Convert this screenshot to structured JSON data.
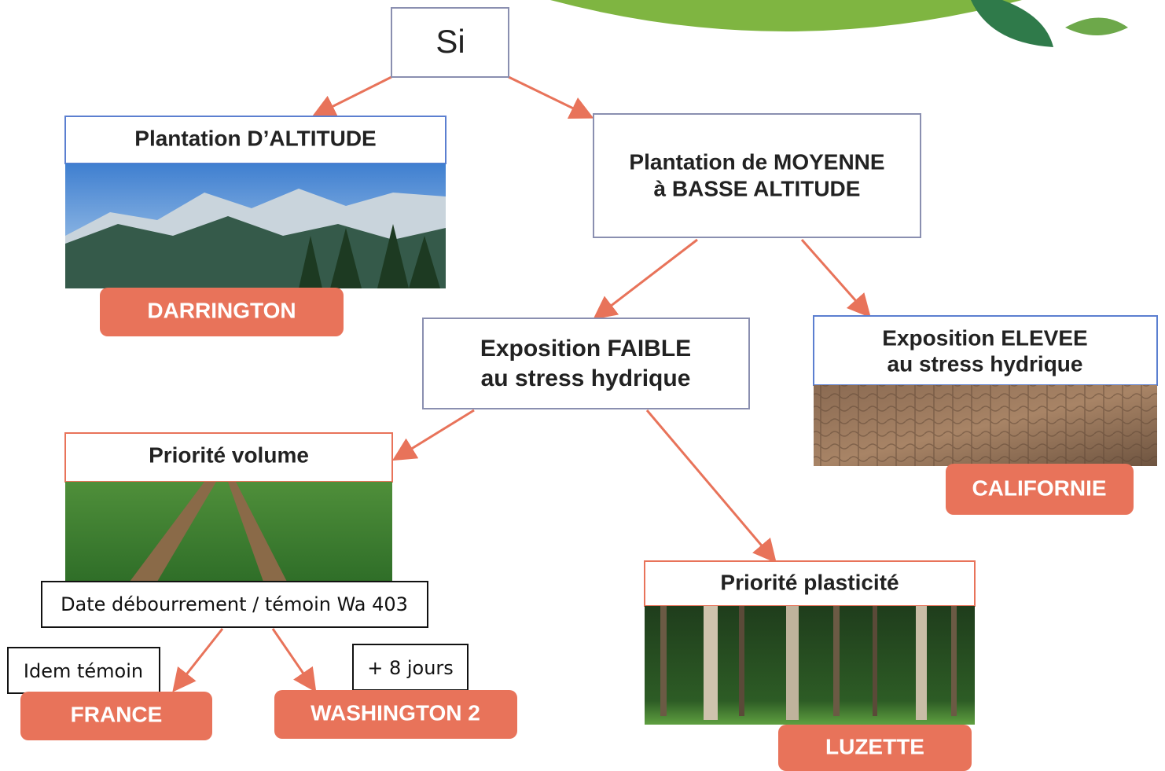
{
  "root": "Si",
  "altitude": {
    "title": "Plantation D’ALTITUDE",
    "result": "DARRINGTON"
  },
  "moyenne": {
    "lines": [
      "Plantation de MOYENNE",
      "à BASSE ALTITUDE"
    ]
  },
  "faible": {
    "lines": [
      "Exposition FAIBLE",
      "au stress hydrique"
    ]
  },
  "elevee": {
    "lines": [
      "Exposition ELEVEE",
      "au stress hydrique"
    ],
    "result": "CALIFORNIE"
  },
  "volume": {
    "title": "Priorité volume",
    "criterion": "Date débourrement / témoin Wa 403",
    "options": [
      {
        "note": "Idem témoin",
        "result": "FRANCE"
      },
      {
        "note": "+ 8 jours",
        "result": "WASHINGTON 2"
      }
    ]
  },
  "plasticite": {
    "title": "Priorité plasticité",
    "result": "LUZETTE"
  }
}
